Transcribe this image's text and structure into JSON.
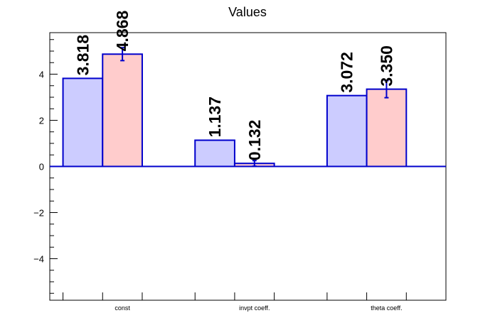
{
  "chart_data": {
    "type": "bar",
    "title": "Values",
    "xlabel": "",
    "ylabel": "",
    "categories": [
      "const",
      "invpt coeff.",
      "theta coeff."
    ],
    "series": [
      {
        "values": [
          3.818,
          1.137,
          3.072
        ],
        "labels": [
          "3.818",
          "1.137",
          "3.072"
        ],
        "errors": [
          0,
          0,
          0
        ],
        "fill": "#ccccff",
        "stroke": "#0000cc"
      },
      {
        "values": [
          4.868,
          0.132,
          3.35
        ],
        "labels": [
          "4.868",
          "0.132",
          "3.350"
        ],
        "errors": [
          0.28,
          0.12,
          0.37
        ],
        "fill": "#ffcccc",
        "stroke": "#0000cc"
      }
    ],
    "ylim": [
      -5.8,
      5.8
    ],
    "yticks": [
      {
        "value": -4,
        "label": "−4"
      },
      {
        "value": -2,
        "label": "−2"
      },
      {
        "value": 0,
        "label": "0"
      },
      {
        "value": 2,
        "label": "2"
      },
      {
        "value": 4,
        "label": "4"
      }
    ],
    "grid": false,
    "legend": "none",
    "colors": {
      "bar_stroke": "#0000cc",
      "zero_line": "#0000cc",
      "error_bar": "#0000cc",
      "axis": "#000000"
    }
  }
}
